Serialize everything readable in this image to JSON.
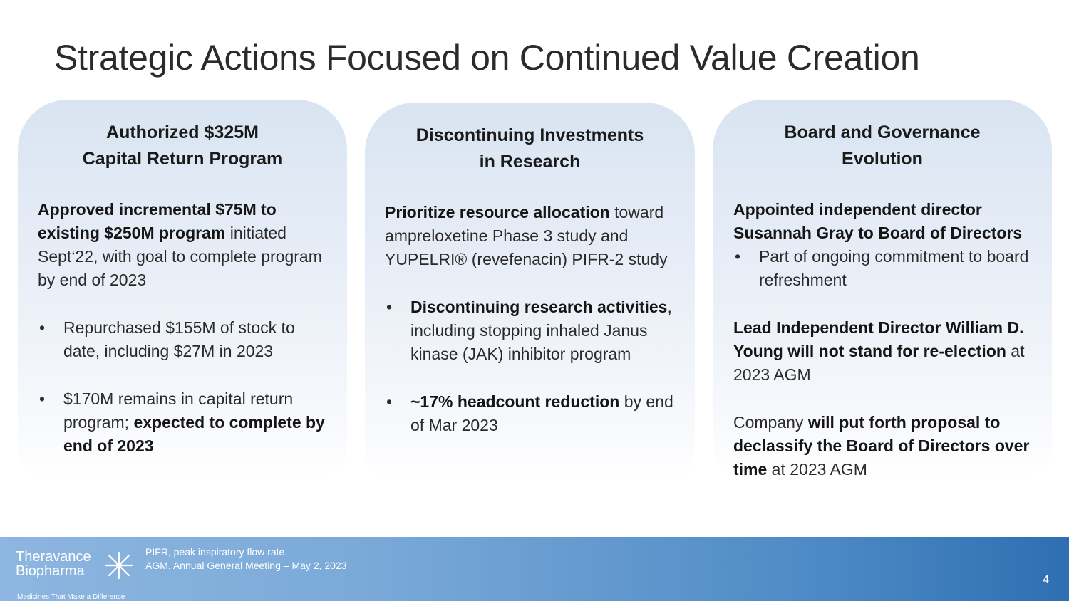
{
  "title": "Strategic Actions Focused on Continued Value Creation",
  "cards": [
    {
      "heading_1": "Authorized $325M",
      "heading_2": "Capital Return Program",
      "intro_bold": "Approved incremental $75M to existing $250M program",
      "intro_rest": " initiated Sept‘22, with goal to complete program by end of 2023",
      "bullet_1": "Repurchased $155M of stock to date, including $27M in 2023",
      "bullet_2_a": "$170M remains in capital return program; ",
      "bullet_2_bold": "expected to complete by end of 2023"
    },
    {
      "heading_1": "Discontinuing Investments",
      "heading_2": "in Research",
      "intro_bold": "Prioritize resource allocation",
      "intro_rest": " toward ampreloxetine Phase 3 study and YUPELRI® (revefenacin) PIFR-2 study",
      "bullet_1_bold": "Discontinuing research activities",
      "bullet_1_rest": ", including stopping inhaled Janus kinase (JAK) inhibitor program",
      "bullet_2_a": "~17% ",
      "bullet_2_bold": "headcount reduction",
      "bullet_2_rest": " by end of Mar 2023"
    },
    {
      "heading_1": "Board and Governance",
      "heading_2": "Evolution",
      "intro_bold": "Appointed independent director Susannah Gray to Board of Directors",
      "bullet_1": "Part of ongoing commitment to board refreshment",
      "para_2_bold": "Lead Independent Director William D. Young will not stand for re-election",
      "para_2_rest": " at 2023 AGM",
      "para_3_a": "Company ",
      "para_3_bold": "will put forth proposal to declassify the Board of Directors over time",
      "para_3_rest": " at 2023 AGM"
    }
  ],
  "footer": {
    "logo_line_1": "Theravance",
    "logo_line_2": "Biopharma",
    "logo_tagline": "Medicines That Make a Difference",
    "note_1": "PIFR, peak inspiratory flow rate.",
    "note_2": "AGM, Annual General Meeting – May 2, 2023",
    "page_number": "4"
  },
  "colors": {
    "card_top": "#d9e4f2",
    "footer_left": "#8db6e0",
    "footer_right": "#2e6fb2"
  }
}
